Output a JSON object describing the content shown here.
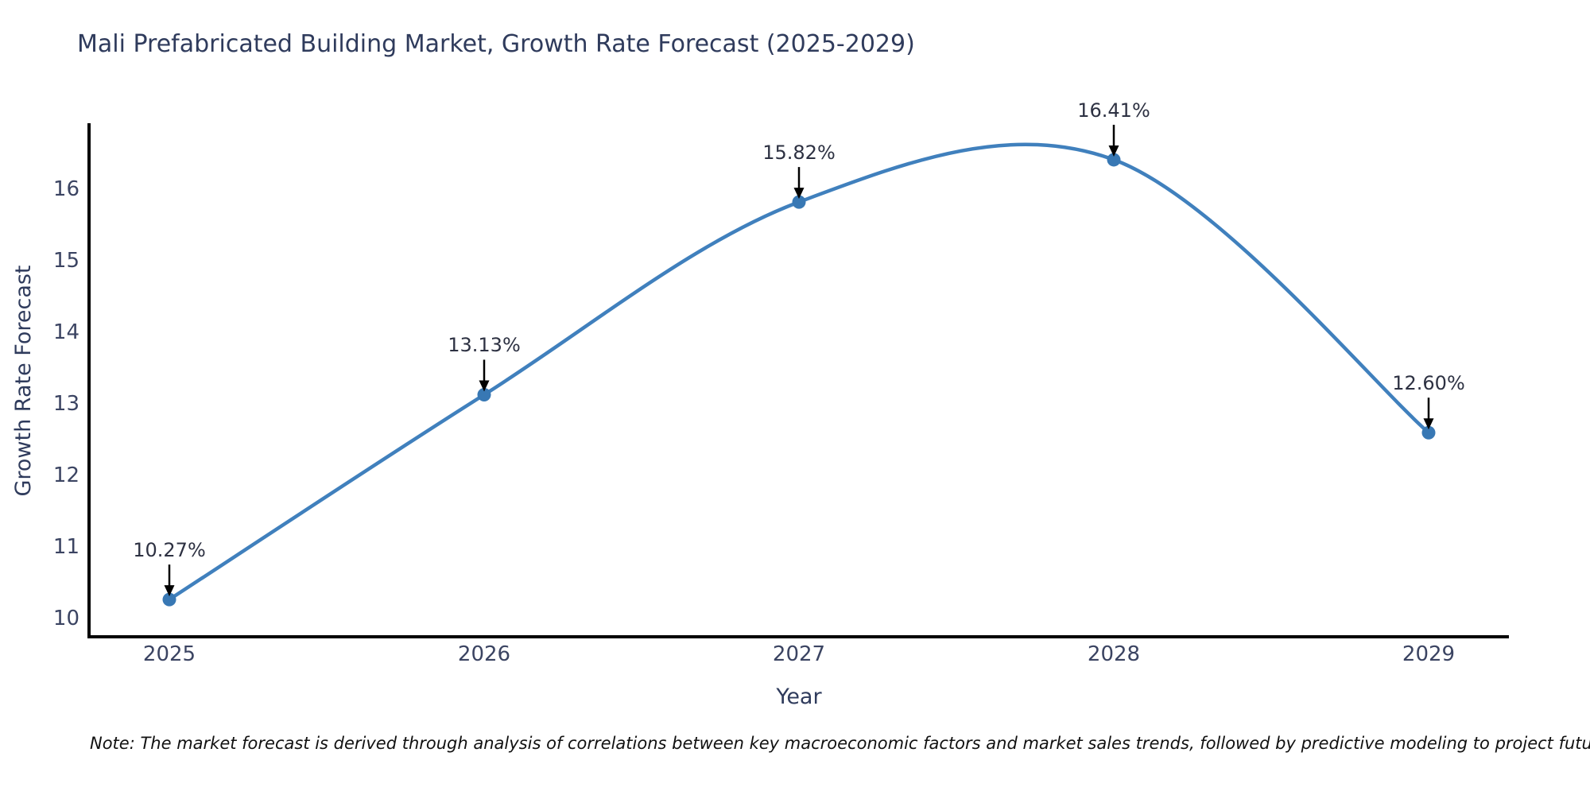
{
  "note": "Note: The market forecast is derived through analysis of correlations between key macroeconomic factors and market sales trends, followed by predictive modeling to project future sales",
  "chart_data": {
    "type": "line",
    "line_shape": "spline",
    "title": "Mali Prefabricated Building Market, Growth Rate Forecast (2025-2029)",
    "xlabel": "Year",
    "ylabel": "Growth Rate Forecast",
    "categories": [
      "2025",
      "2026",
      "2027",
      "2028",
      "2029"
    ],
    "series": [
      {
        "name": "Growth Rate Forecast",
        "values": [
          10.27,
          13.13,
          15.82,
          16.41,
          12.6
        ]
      }
    ],
    "point_labels": [
      "10.27%",
      "13.13%",
      "15.82%",
      "16.41%",
      "12.60%"
    ],
    "yticks": [
      10,
      11,
      12,
      13,
      14,
      15,
      16
    ],
    "ylim": [
      9.75,
      16.92
    ],
    "grid": false,
    "legend": false,
    "annotations": "arrow-down-to-point",
    "colors": {
      "line": "#4080bd",
      "marker": "#3878b4",
      "axis": "#000000",
      "arrow": "#000000",
      "title_text": "#2f3b5c",
      "tick_text": "#3b4462",
      "annotation_text": "#2d3142",
      "note_text": "#111111",
      "background": "#ffffff"
    }
  }
}
